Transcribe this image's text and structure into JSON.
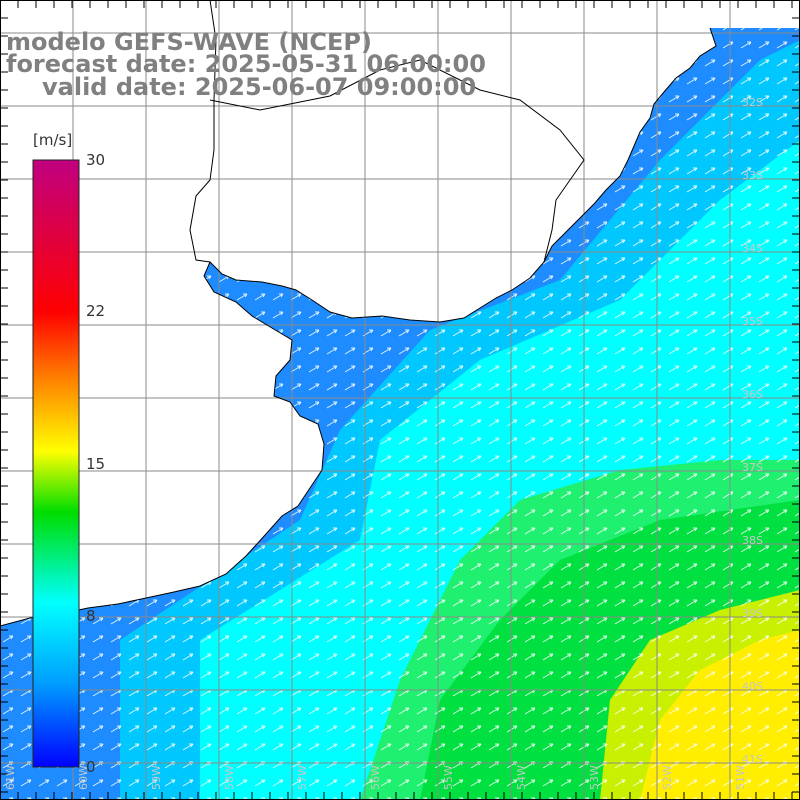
{
  "title": {
    "model": "modelo GEFS-WAVE (NCEP)",
    "forecast": "forecast date: 2025-05-31 06:00:00",
    "valid": "valid date: 2025-06-07 09:00:00"
  },
  "colorbar": {
    "unit": "[m/s]",
    "min": 0,
    "max": 30,
    "ticks": [
      "30",
      "22",
      "15",
      "8",
      "0"
    ],
    "colors": [
      "#0000ff",
      "#00a0ff",
      "#00ffff",
      "#00dd00",
      "#ffff00",
      "#ff8000",
      "#ff0000",
      "#c00080"
    ]
  },
  "map": {
    "variable": "wind speed and direction",
    "lat_labels": [
      "32S",
      "33S",
      "34S",
      "35S",
      "36S",
      "37S",
      "38S",
      "39S",
      "40S",
      "41S"
    ],
    "lon_labels": [
      "61W",
      "60W",
      "59W",
      "58W",
      "57W",
      "56W",
      "55W",
      "54W",
      "53W",
      "52W",
      "51W"
    ],
    "wind_direction": "towards northeast",
    "ocean_colors": {
      "coast": "#1e8cff",
      "shelf": "#00ffff",
      "mid": "#00e040",
      "high": "#ffee00"
    },
    "land_color": "#ffffff",
    "grid_color": "#8a8a8a",
    "coast_color": "#000000"
  }
}
